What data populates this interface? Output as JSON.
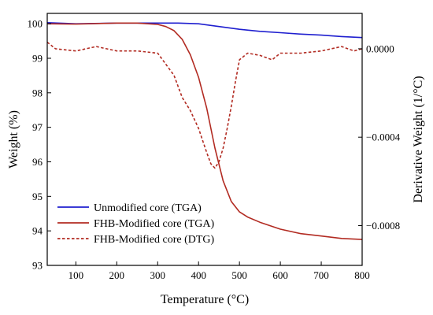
{
  "chart_data": {
    "type": "line",
    "xlabel": "Temperature (°C)",
    "ylabel": "Weight (%)",
    "y2label": "Derivative Weight (1/°C)",
    "xlim": [
      30,
      800
    ],
    "ylim": [
      93,
      100.3
    ],
    "y2lim": [
      -0.00098,
      0.00016
    ],
    "x_ticks": [
      100,
      200,
      300,
      400,
      500,
      600,
      700,
      800
    ],
    "y_ticks": [
      93,
      94,
      95,
      96,
      97,
      98,
      99,
      100
    ],
    "y2_ticks": [
      0.0,
      -0.0004,
      -0.0008
    ],
    "y2_tick_labels": [
      "0.0000",
      "−0.0004",
      "−0.0008"
    ],
    "legend_position": "bottom-left",
    "series": [
      {
        "name": "Unmodified core (TGA)",
        "axis": "left",
        "color": "#1f1fcf",
        "dash": "solid",
        "x": [
          30,
          100,
          200,
          300,
          350,
          400,
          450,
          500,
          550,
          600,
          650,
          700,
          750,
          800
        ],
        "y": [
          100.03,
          100.0,
          100.02,
          100.02,
          100.02,
          100.0,
          99.92,
          99.84,
          99.78,
          99.74,
          99.7,
          99.67,
          99.63,
          99.6
        ]
      },
      {
        "name": "FHB-Modified core (TGA)",
        "axis": "left",
        "color": "#b22b22",
        "dash": "solid",
        "x": [
          30,
          100,
          200,
          250,
          300,
          320,
          340,
          360,
          380,
          400,
          420,
          440,
          460,
          480,
          500,
          520,
          550,
          600,
          650,
          700,
          750,
          800
        ],
        "y": [
          100.0,
          99.99,
          100.02,
          100.02,
          99.98,
          99.92,
          99.8,
          99.55,
          99.1,
          98.45,
          97.55,
          96.4,
          95.45,
          94.85,
          94.55,
          94.4,
          94.25,
          94.05,
          93.92,
          93.85,
          93.78,
          93.75
        ]
      },
      {
        "name": "FHB-Modified core (DTG)",
        "axis": "right",
        "color": "#b22b22",
        "dash": "dashed",
        "x": [
          30,
          50,
          100,
          150,
          200,
          250,
          300,
          340,
          360,
          380,
          400,
          420,
          430,
          440,
          450,
          460,
          470,
          480,
          490,
          500,
          520,
          550,
          580,
          600,
          650,
          700,
          750,
          780,
          800
        ],
        "y": [
          3e-05,
          0.0,
          -1e-05,
          1e-05,
          -1e-05,
          -1e-05,
          -2e-05,
          -0.00012,
          -0.00022,
          -0.00028,
          -0.00036,
          -0.00047,
          -0.00052,
          -0.00054,
          -0.00051,
          -0.00045,
          -0.00036,
          -0.00026,
          -0.00015,
          -5e-05,
          -2e-05,
          -3e-05,
          -5e-05,
          -2e-05,
          -2e-05,
          -1e-05,
          1e-05,
          -1e-05,
          0.0
        ]
      }
    ]
  }
}
